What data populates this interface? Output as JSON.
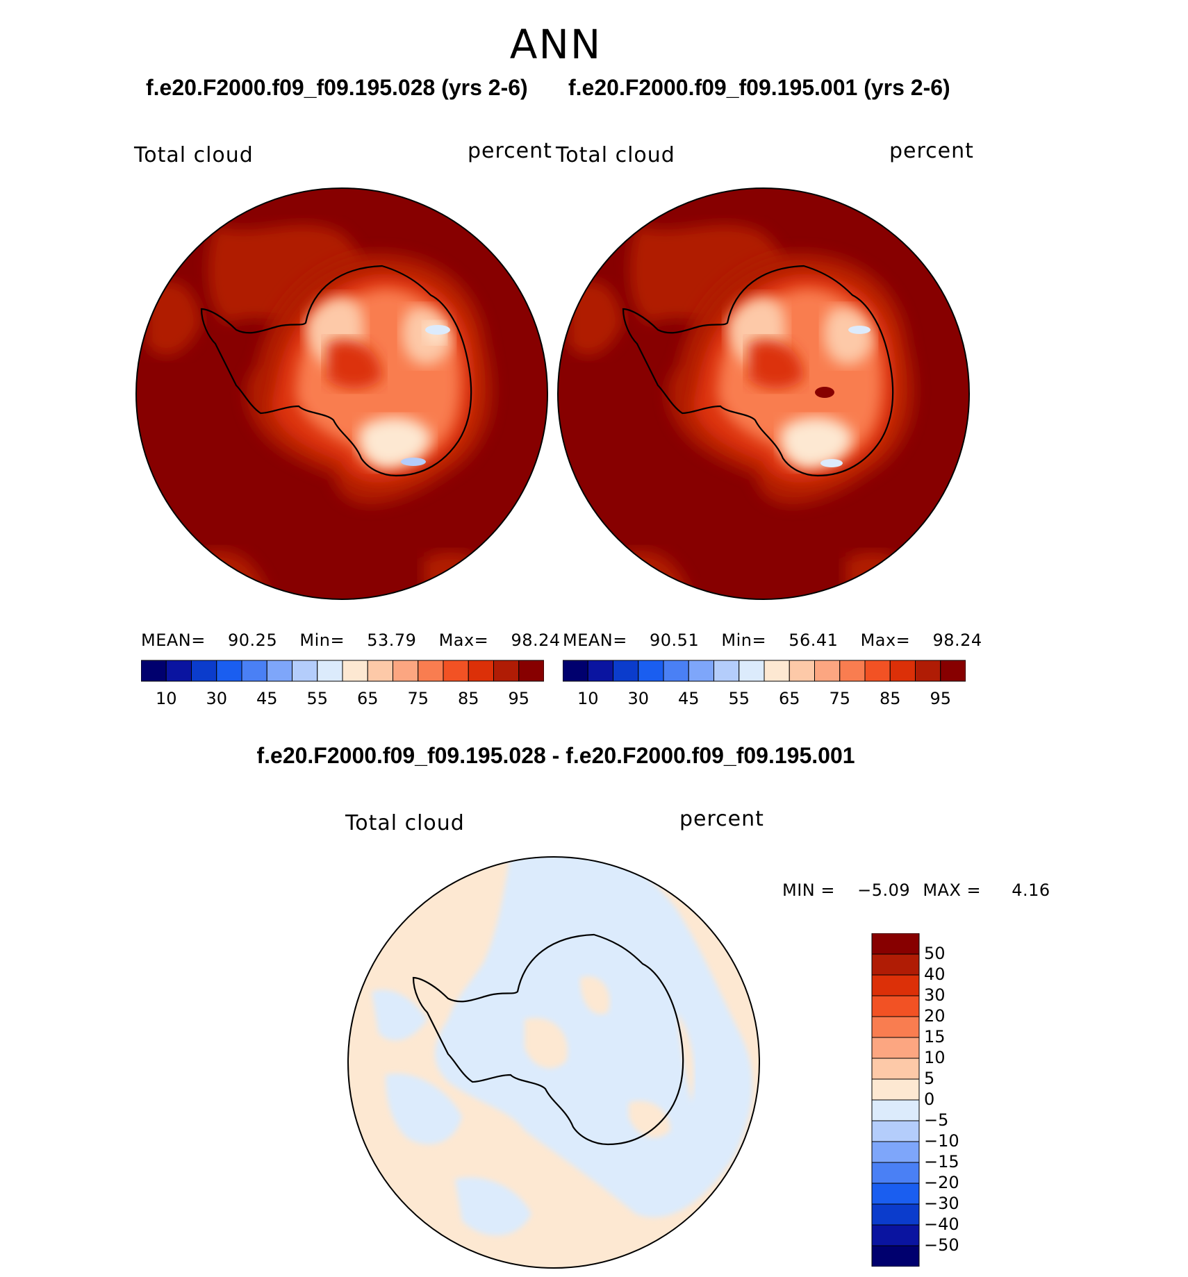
{
  "season": "ANN",
  "panels": [
    {
      "case_title": "f.e20.F2000.f09_f09.195.028 (yrs 2-6)",
      "variable": "Total cloud",
      "units": "percent",
      "stats": {
        "mean_label": "MEAN=",
        "mean": "90.25",
        "min_label": "Min=",
        "min": "53.79",
        "max_label": "Max=",
        "max": "98.24"
      }
    },
    {
      "case_title": "f.e20.F2000.f09_f09.195.001 (yrs 2-6)",
      "variable": "Total cloud",
      "units": "percent",
      "stats": {
        "mean_label": "MEAN=",
        "mean": "90.51",
        "min_label": "Min=",
        "min": "56.41",
        "max_label": "Max=",
        "max": "98.24"
      }
    }
  ],
  "colorbar": {
    "colors": [
      "#00006e",
      "#0a14a0",
      "#0b3ccc",
      "#1a5ef0",
      "#4a80f5",
      "#7ea6fa",
      "#b4cdfb",
      "#dcebfc",
      "#fde8d2",
      "#fdc9a8",
      "#fca681",
      "#f97d50",
      "#f25224",
      "#dc3008",
      "#b01c05",
      "#870000"
    ],
    "tick_labels": [
      "10",
      "30",
      "45",
      "55",
      "65",
      "75",
      "85",
      "95"
    ]
  },
  "difference": {
    "title": "f.e20.F2000.f09_f09.195.028 - f.e20.F2000.f09_f09.195.001",
    "variable": "Total cloud",
    "units": "percent",
    "min_label": "MIN =",
    "min": "−5.09",
    "max_label": "MAX =",
    "max": "4.16",
    "colorbar": {
      "colors": [
        "#870000",
        "#b01c05",
        "#dc3008",
        "#f25224",
        "#f97d50",
        "#fca681",
        "#fdc9a8",
        "#fde8d2",
        "#dcebfc",
        "#b4cdfb",
        "#7ea6fa",
        "#4a80f5",
        "#1a5ef0",
        "#0b3ccc",
        "#0a14a0",
        "#00006e"
      ],
      "tick_labels": [
        "50",
        "40",
        "30",
        "20",
        "15",
        "10",
        "5",
        "0",
        "−5",
        "−10",
        "−15",
        "−20",
        "−30",
        "−40",
        "−50"
      ]
    }
  },
  "colors": {
    "map_ocean_high": "#870000",
    "map_ring": "#b01c05",
    "coast": "#000000",
    "diff_positive": "#fde8d2",
    "diff_negative": "#dcebfc"
  }
}
